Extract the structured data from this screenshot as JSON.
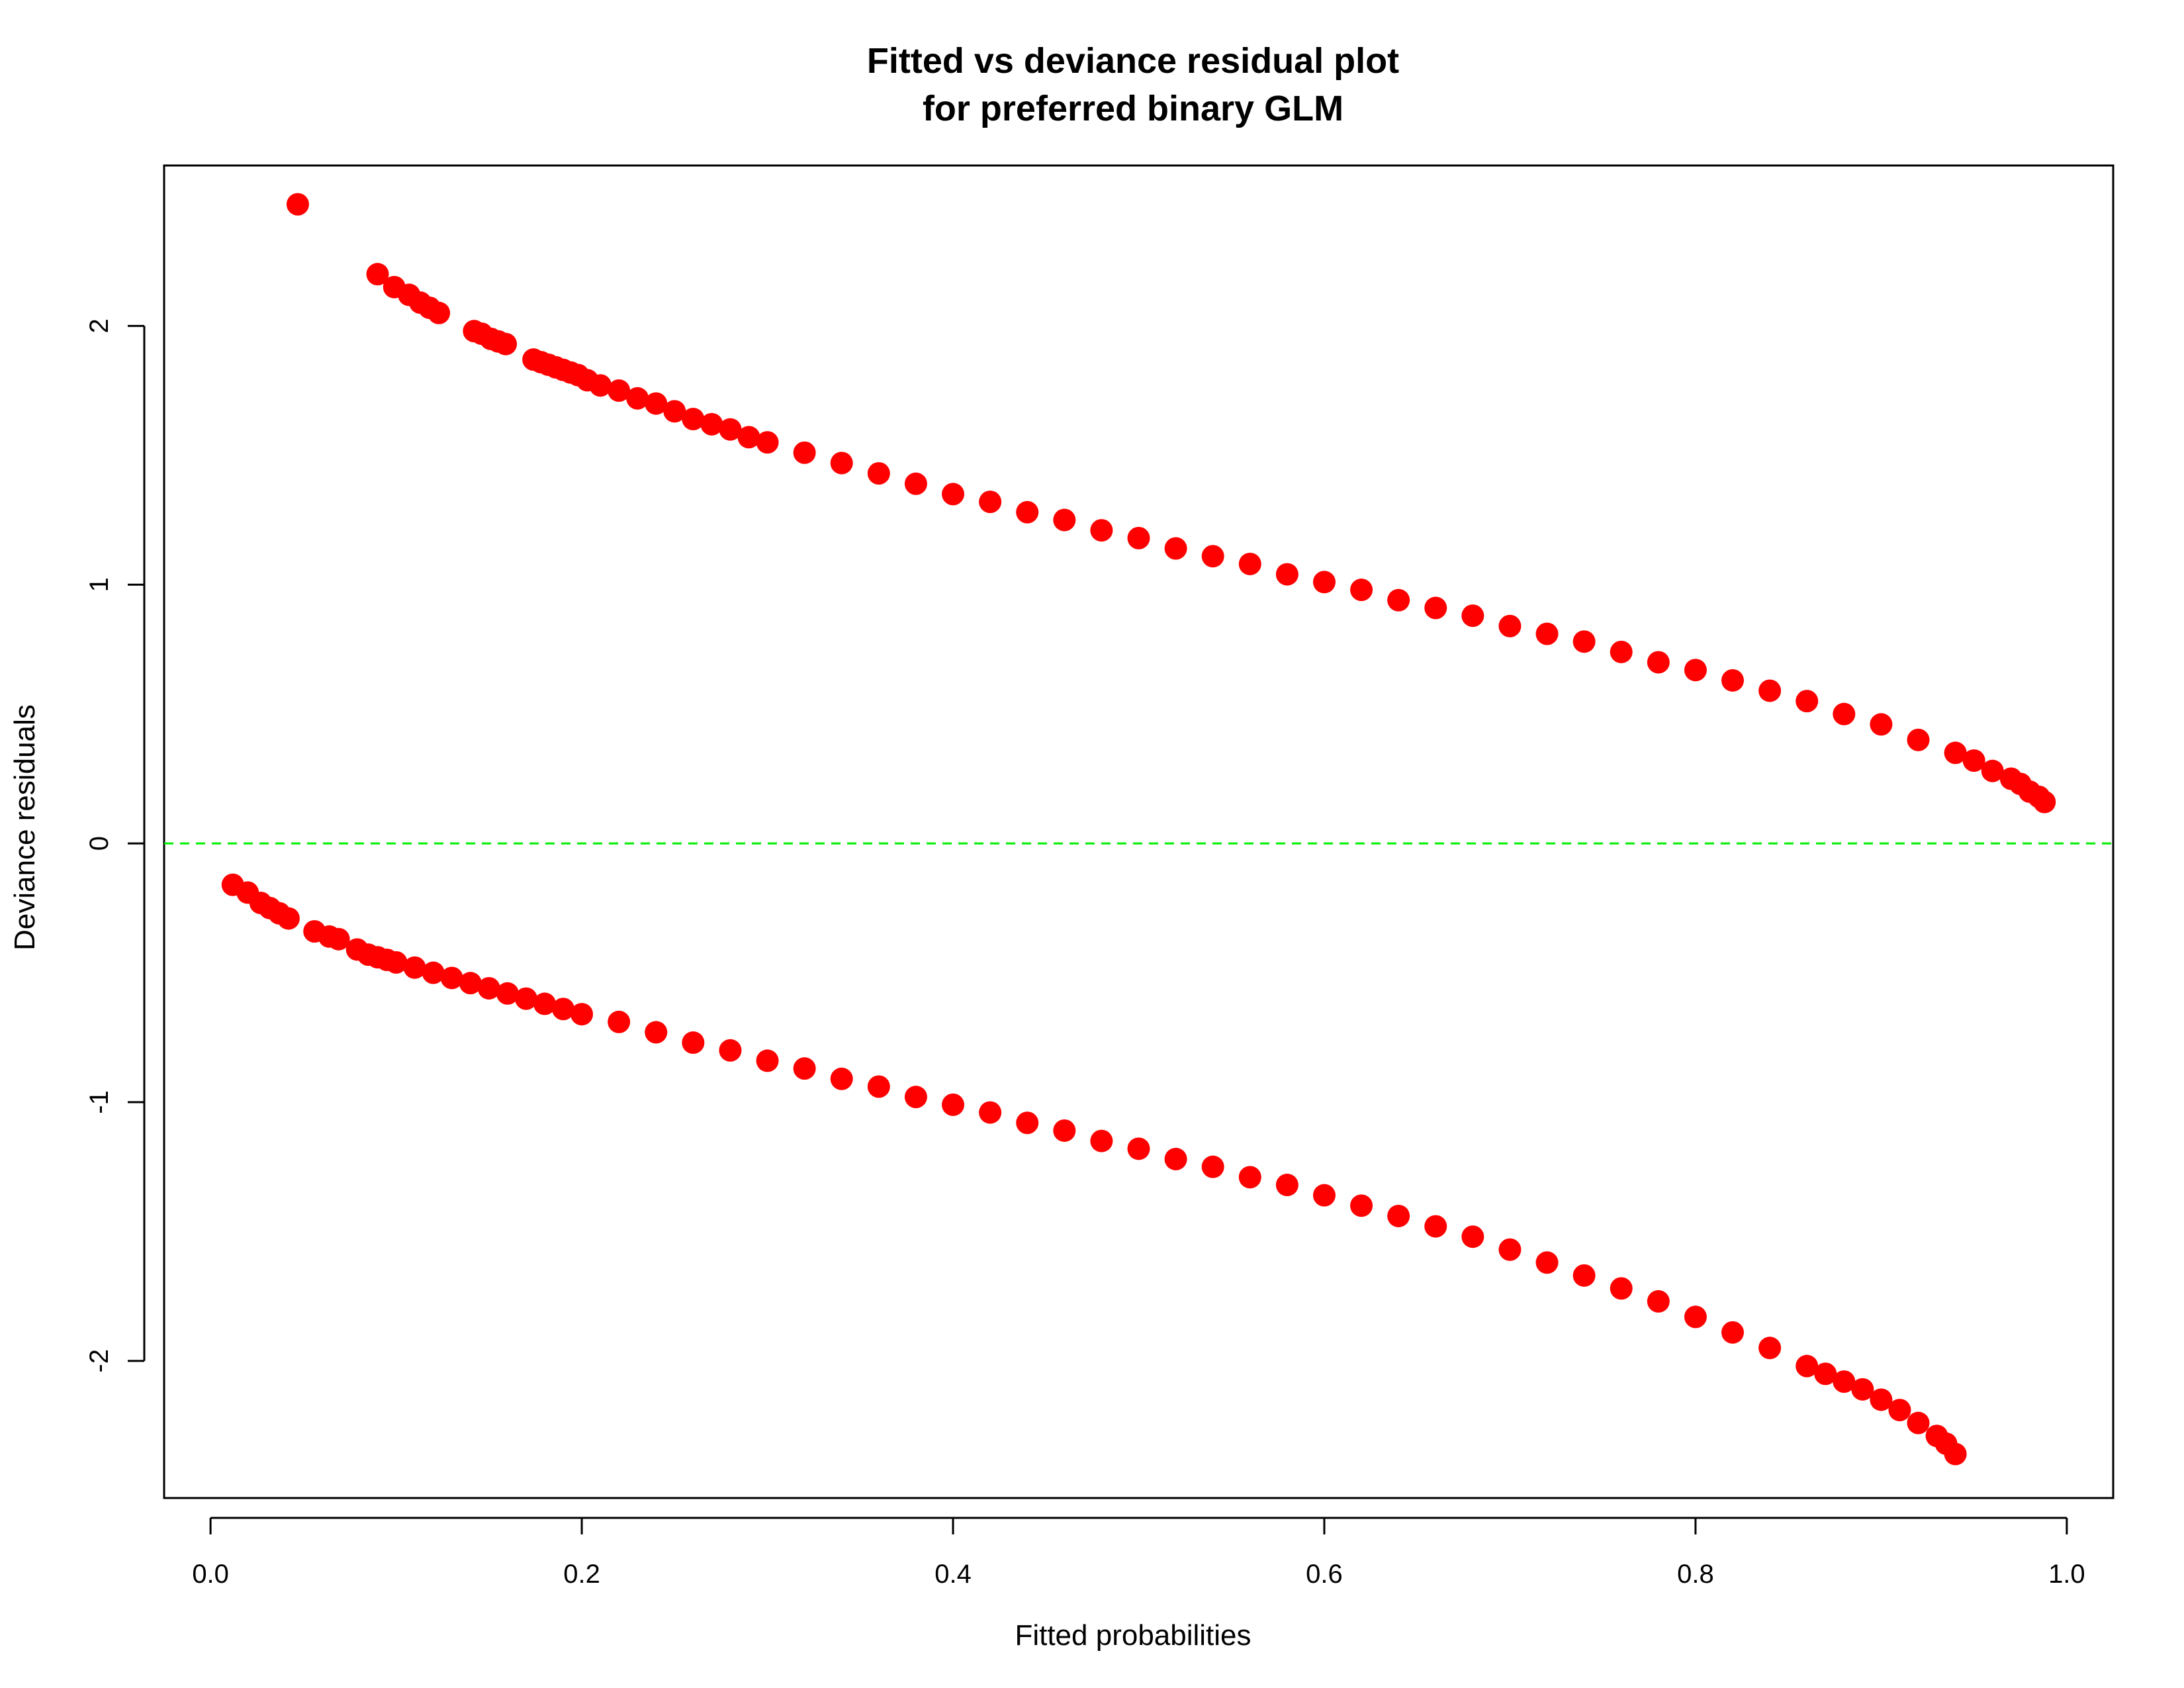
{
  "chart_data": {
    "type": "scatter",
    "title": [
      "Fitted vs deviance residual plot",
      "for preferred binary GLM"
    ],
    "xlabel": "Fitted probabilities",
    "ylabel": "Deviance residuals",
    "xlim": [
      -0.025,
      1.025
    ],
    "ylim": [
      -2.53,
      2.62
    ],
    "x_ticks": [
      {
        "value": 0.0,
        "label": "0.0"
      },
      {
        "value": 0.2,
        "label": "0.2"
      },
      {
        "value": 0.4,
        "label": "0.4"
      },
      {
        "value": 0.6,
        "label": "0.6"
      },
      {
        "value": 0.8,
        "label": "0.8"
      },
      {
        "value": 1.0,
        "label": "1.0"
      }
    ],
    "y_ticks": [
      {
        "value": -2,
        "label": "-2"
      },
      {
        "value": -1,
        "label": "-1"
      },
      {
        "value": 0,
        "label": "0"
      },
      {
        "value": 1,
        "label": "1"
      },
      {
        "value": 2,
        "label": "2"
      }
    ],
    "reference_line": {
      "y": 0,
      "style": "dashed",
      "color": "#00ee00"
    },
    "point_color": "#ff0000",
    "grid": false,
    "series": [
      {
        "points": [
          [
            0.047,
            2.47
          ],
          [
            0.09,
            2.2
          ],
          [
            0.099,
            2.15
          ],
          [
            0.107,
            2.12
          ],
          [
            0.113,
            2.09
          ],
          [
            0.118,
            2.07
          ],
          [
            0.123,
            2.05
          ],
          [
            0.142,
            1.98
          ],
          [
            0.146,
            1.97
          ],
          [
            0.151,
            1.95
          ],
          [
            0.155,
            1.94
          ],
          [
            0.159,
            1.93
          ],
          [
            0.174,
            1.87
          ],
          [
            0.178,
            1.86
          ],
          [
            0.182,
            1.85
          ],
          [
            0.186,
            1.84
          ],
          [
            0.19,
            1.83
          ],
          [
            0.194,
            1.82
          ],
          [
            0.198,
            1.81
          ],
          [
            0.203,
            1.79
          ],
          [
            0.21,
            1.77
          ],
          [
            0.22,
            1.75
          ],
          [
            0.23,
            1.72
          ],
          [
            0.24,
            1.7
          ],
          [
            0.25,
            1.67
          ],
          [
            0.26,
            1.64
          ],
          [
            0.27,
            1.62
          ],
          [
            0.28,
            1.6
          ],
          [
            0.29,
            1.57
          ],
          [
            0.3,
            1.55
          ],
          [
            0.32,
            1.51
          ],
          [
            0.34,
            1.47
          ],
          [
            0.36,
            1.43
          ],
          [
            0.38,
            1.39
          ],
          [
            0.4,
            1.35
          ],
          [
            0.42,
            1.32
          ],
          [
            0.44,
            1.28
          ],
          [
            0.46,
            1.25
          ],
          [
            0.48,
            1.21
          ],
          [
            0.5,
            1.18
          ],
          [
            0.52,
            1.14
          ],
          [
            0.54,
            1.11
          ],
          [
            0.56,
            1.08
          ],
          [
            0.58,
            1.04
          ],
          [
            0.6,
            1.01
          ],
          [
            0.62,
            0.98
          ],
          [
            0.64,
            0.94
          ],
          [
            0.66,
            0.91
          ],
          [
            0.68,
            0.88
          ],
          [
            0.7,
            0.84
          ],
          [
            0.72,
            0.81
          ],
          [
            0.74,
            0.78
          ],
          [
            0.76,
            0.74
          ],
          [
            0.78,
            0.7
          ],
          [
            0.8,
            0.67
          ],
          [
            0.82,
            0.63
          ],
          [
            0.84,
            0.59
          ],
          [
            0.86,
            0.55
          ],
          [
            0.88,
            0.5
          ],
          [
            0.9,
            0.46
          ],
          [
            0.92,
            0.4
          ],
          [
            0.94,
            0.35
          ],
          [
            0.95,
            0.32
          ],
          [
            0.96,
            0.28
          ],
          [
            0.97,
            0.25
          ],
          [
            0.975,
            0.23
          ],
          [
            0.98,
            0.2
          ],
          [
            0.985,
            0.18
          ],
          [
            0.988,
            0.16
          ],
          [
            0.012,
            -0.16
          ],
          [
            0.02,
            -0.19
          ],
          [
            0.027,
            -0.23
          ],
          [
            0.032,
            -0.25
          ],
          [
            0.037,
            -0.27
          ],
          [
            0.042,
            -0.29
          ],
          [
            0.056,
            -0.34
          ],
          [
            0.064,
            -0.36
          ],
          [
            0.069,
            -0.37
          ],
          [
            0.079,
            -0.41
          ],
          [
            0.085,
            -0.43
          ],
          [
            0.09,
            -0.44
          ],
          [
            0.095,
            -0.45
          ],
          [
            0.1,
            -0.46
          ],
          [
            0.11,
            -0.48
          ],
          [
            0.12,
            -0.5
          ],
          [
            0.13,
            -0.52
          ],
          [
            0.14,
            -0.54
          ],
          [
            0.15,
            -0.56
          ],
          [
            0.16,
            -0.58
          ],
          [
            0.17,
            -0.6
          ],
          [
            0.18,
            -0.62
          ],
          [
            0.19,
            -0.64
          ],
          [
            0.2,
            -0.66
          ],
          [
            0.22,
            -0.69
          ],
          [
            0.24,
            -0.73
          ],
          [
            0.26,
            -0.77
          ],
          [
            0.28,
            -0.8
          ],
          [
            0.3,
            -0.84
          ],
          [
            0.32,
            -0.87
          ],
          [
            0.34,
            -0.91
          ],
          [
            0.36,
            -0.94
          ],
          [
            0.38,
            -0.98
          ],
          [
            0.4,
            -1.01
          ],
          [
            0.42,
            -1.04
          ],
          [
            0.44,
            -1.08
          ],
          [
            0.46,
            -1.11
          ],
          [
            0.48,
            -1.15
          ],
          [
            0.5,
            -1.18
          ],
          [
            0.52,
            -1.22
          ],
          [
            0.54,
            -1.25
          ],
          [
            0.56,
            -1.29
          ],
          [
            0.58,
            -1.32
          ],
          [
            0.6,
            -1.36
          ],
          [
            0.62,
            -1.4
          ],
          [
            0.64,
            -1.44
          ],
          [
            0.66,
            -1.48
          ],
          [
            0.68,
            -1.52
          ],
          [
            0.7,
            -1.57
          ],
          [
            0.72,
            -1.62
          ],
          [
            0.74,
            -1.67
          ],
          [
            0.76,
            -1.72
          ],
          [
            0.78,
            -1.77
          ],
          [
            0.8,
            -1.83
          ],
          [
            0.82,
            -1.89
          ],
          [
            0.84,
            -1.95
          ],
          [
            0.86,
            -2.02
          ],
          [
            0.87,
            -2.05
          ],
          [
            0.88,
            -2.08
          ],
          [
            0.89,
            -2.11
          ],
          [
            0.9,
            -2.15
          ],
          [
            0.91,
            -2.19
          ],
          [
            0.92,
            -2.24
          ],
          [
            0.93,
            -2.29
          ],
          [
            0.935,
            -2.32
          ],
          [
            0.94,
            -2.36
          ]
        ]
      }
    ]
  }
}
